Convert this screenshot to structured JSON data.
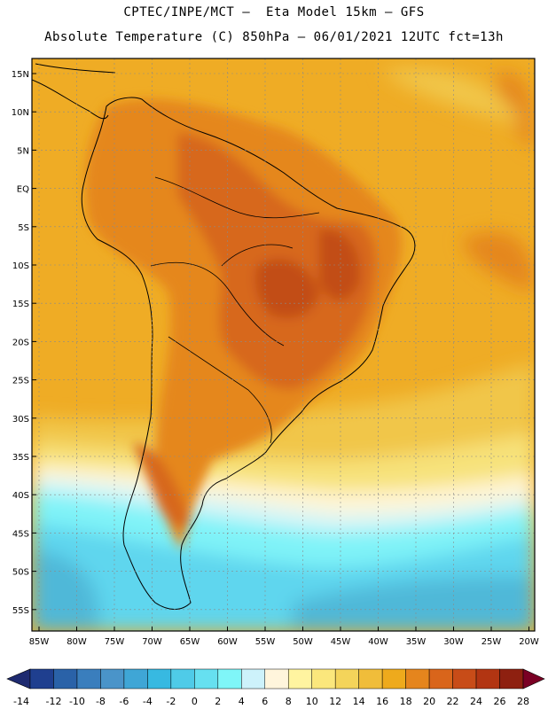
{
  "header": {
    "title_line1": "CPTEC/INPE/MCT –  Eta Model 15km – GFS",
    "title_line2": "Absolute Temperature (C) 850hPa – 06/01/2021 12UTC fct=13h"
  },
  "axes": {
    "lat_labels": [
      "15N",
      "10N",
      "5N",
      "EQ",
      "5S",
      "10S",
      "15S",
      "20S",
      "25S",
      "30S",
      "35S",
      "40S",
      "45S",
      "50S",
      "55S"
    ],
    "lon_labels": [
      "85W",
      "80W",
      "75W",
      "70W",
      "65W",
      "60W",
      "55W",
      "50W",
      "45W",
      "40W",
      "35W",
      "30W",
      "25W",
      "20W"
    ]
  },
  "colorbar": {
    "labels": [
      "-14",
      "-12",
      "-10",
      "-8",
      "-6",
      "-4",
      "-2",
      "0",
      "2",
      "4",
      "6",
      "8",
      "10",
      "12",
      "14",
      "16",
      "18",
      "20",
      "22",
      "24",
      "26",
      "28"
    ],
    "colors": [
      "#1f3f8f",
      "#2a62a8",
      "#3a7ebd",
      "#4a94c9",
      "#3fa6d6",
      "#37b9e1",
      "#4fcbe8",
      "#66e0f0",
      "#7ff6f8",
      "#cdf2fb",
      "#fff5dc",
      "#fff4a0",
      "#fbe77c",
      "#f4d45a",
      "#f0bd3a",
      "#eeaa1c",
      "#e5851d",
      "#d9651b",
      "#c84c18",
      "#b23512",
      "#8e2010"
    ],
    "low_arrow_color": "#1e2a70",
    "high_arrow_color": "#7a0024"
  },
  "map_colors": {
    "ocean_far_south": "#4fb8d8",
    "cold_band": "#5ed6ee",
    "cyan_band": "#7ff3f8",
    "pale_band": "#d6f5f8",
    "cream_band": "#fff5d6",
    "yellow_band": "#f7e27a",
    "gold_band": "#f1c64a",
    "tropics": "#efac25",
    "warm": "#e5871f",
    "hot": "#d7681b",
    "hottest": "#c24e16",
    "coast": "#000000"
  }
}
